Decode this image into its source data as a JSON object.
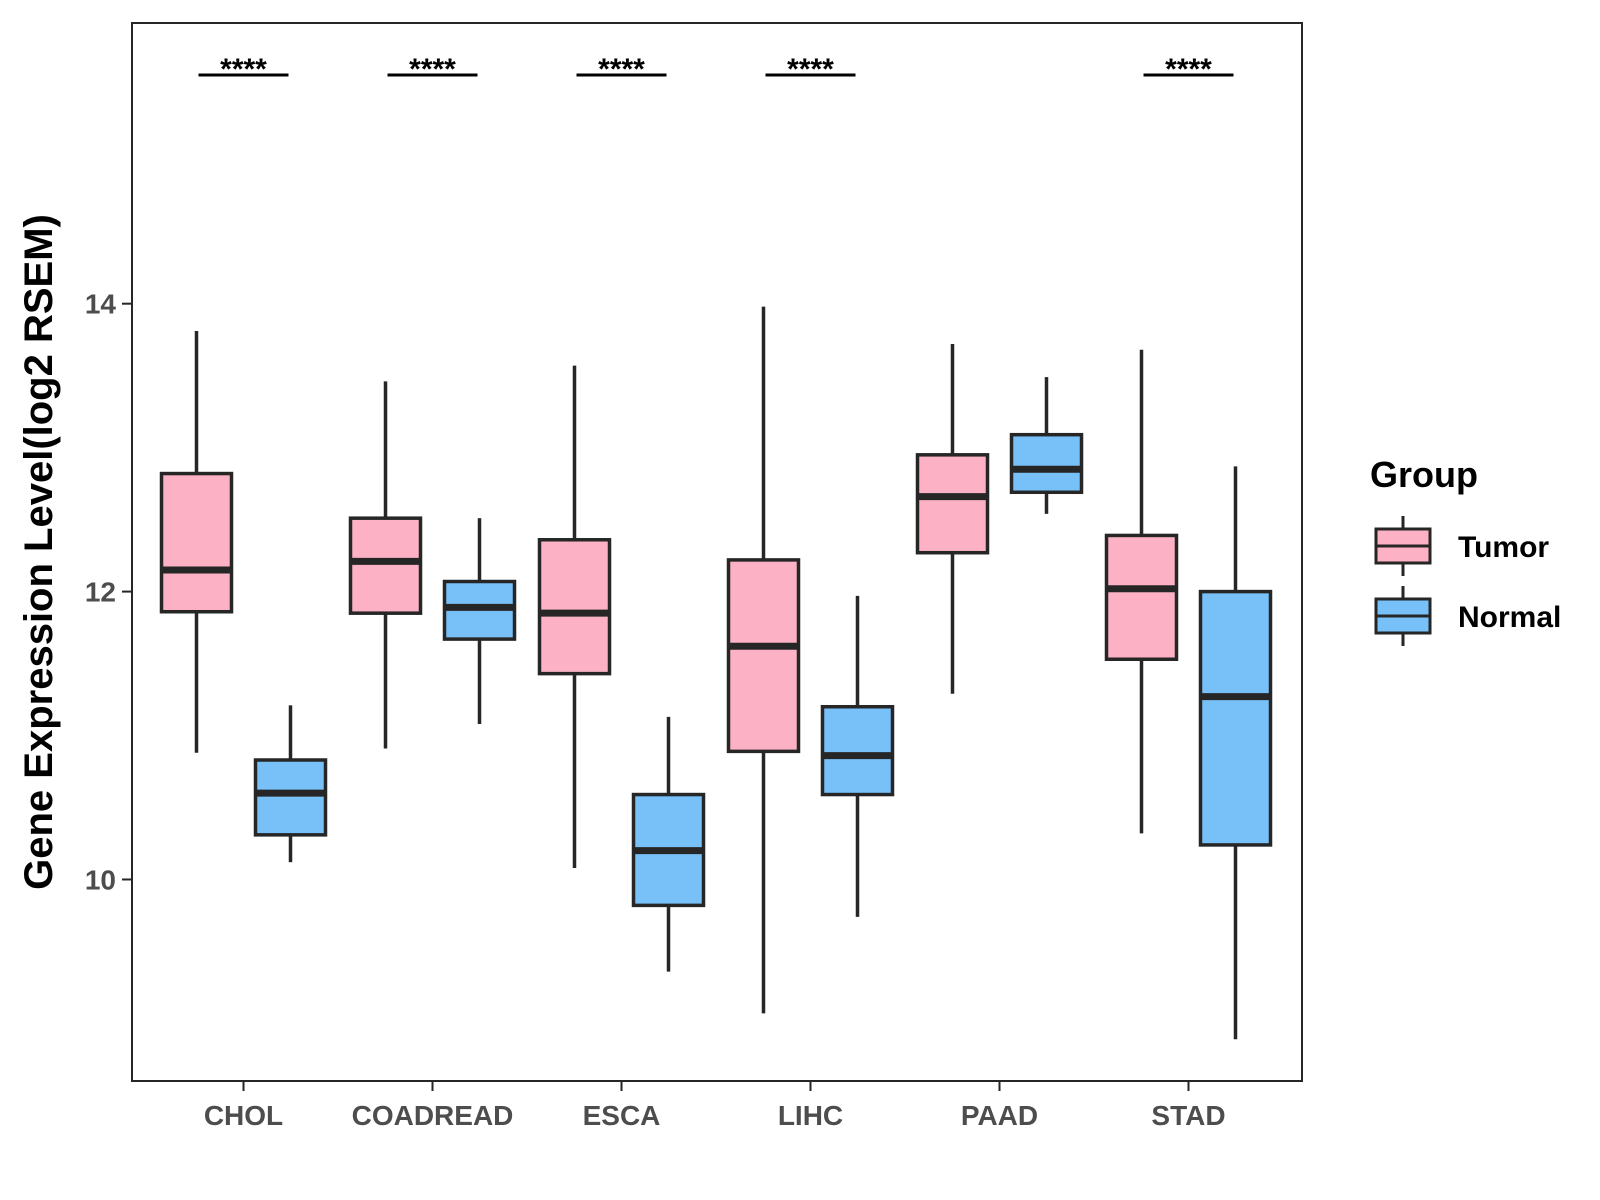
{
  "chart_data": {
    "type": "boxplot",
    "title": "",
    "xlabel": "",
    "ylabel": "Gene Expression Level(log2 RSEM)",
    "ylim": [
      8.6,
      15.95
    ],
    "yticks": [
      10,
      12,
      14
    ],
    "ytick_labels": [
      "10",
      "12",
      "14"
    ],
    "grid": false,
    "legend": {
      "title": "Group",
      "position": "right"
    },
    "categories": [
      "CHOL",
      "COADREAD",
      "ESCA",
      "LIHC",
      "PAAD",
      "STAD"
    ],
    "series": [
      {
        "name": "Tumor",
        "color": "#FCB2C4",
        "boxes": [
          {
            "whisker_low": 10.88,
            "q1": 11.86,
            "median": 12.15,
            "q3": 12.82,
            "whisker_high": 13.81
          },
          {
            "whisker_low": 10.91,
            "q1": 11.85,
            "median": 12.21,
            "q3": 12.51,
            "whisker_high": 13.46
          },
          {
            "whisker_low": 10.08,
            "q1": 11.43,
            "median": 11.85,
            "q3": 12.36,
            "whisker_high": 13.57
          },
          {
            "whisker_low": 9.07,
            "q1": 10.89,
            "median": 11.62,
            "q3": 12.22,
            "whisker_high": 13.98
          },
          {
            "whisker_low": 11.29,
            "q1": 12.27,
            "median": 12.66,
            "q3": 12.95,
            "whisker_high": 13.72
          },
          {
            "whisker_low": 10.32,
            "q1": 11.53,
            "median": 12.02,
            "q3": 12.39,
            "whisker_high": 13.68
          }
        ]
      },
      {
        "name": "Normal",
        "color": "#78C1F8",
        "boxes": [
          {
            "whisker_low": 10.12,
            "q1": 10.31,
            "median": 10.6,
            "q3": 10.83,
            "whisker_high": 11.21
          },
          {
            "whisker_low": 11.08,
            "q1": 11.67,
            "median": 11.89,
            "q3": 12.07,
            "whisker_high": 12.51
          },
          {
            "whisker_low": 9.36,
            "q1": 9.82,
            "median": 10.2,
            "q3": 10.59,
            "whisker_high": 11.13
          },
          {
            "whisker_low": 9.74,
            "q1": 10.59,
            "median": 10.86,
            "q3": 11.2,
            "whisker_high": 11.97
          },
          {
            "whisker_low": 12.54,
            "q1": 12.69,
            "median": 12.85,
            "q3": 13.09,
            "whisker_high": 13.49
          },
          {
            "whisker_low": 8.89,
            "q1": 10.24,
            "median": 11.27,
            "q3": 12.0,
            "whisker_high": 12.87
          }
        ]
      }
    ],
    "significance": [
      {
        "category": "CHOL",
        "label": "****"
      },
      {
        "category": "COADREAD",
        "label": "****"
      },
      {
        "category": "ESCA",
        "label": "****"
      },
      {
        "category": "LIHC",
        "label": "****"
      },
      {
        "category": "PAAD",
        "label": ""
      },
      {
        "category": "STAD",
        "label": "****"
      }
    ],
    "colors": {
      "outline": "#262626",
      "panel_border": "#262626",
      "tick_text": "#4d4d4d"
    }
  }
}
